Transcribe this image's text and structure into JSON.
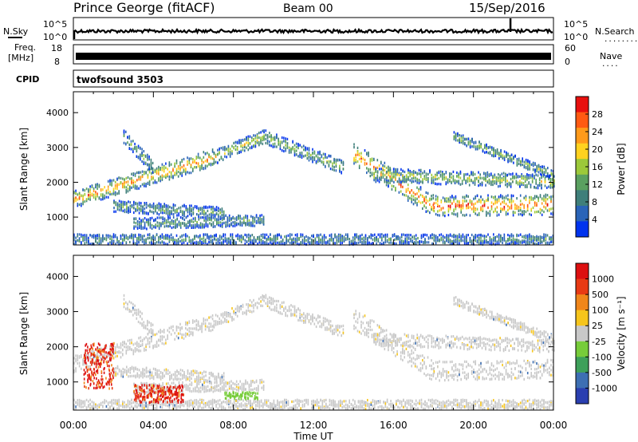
{
  "header": {
    "station": "Prince George (fitACF)",
    "beam": "Beam 00",
    "date": "15/Sep/2016"
  },
  "side_labels": {
    "nsky": "N.Sky",
    "freq_line1": "Freq.",
    "freq_line2": "[MHz]",
    "cpid": "CPID",
    "nsearch": "N.Search",
    "nsearch_dots": "........",
    "nave": "Nave",
    "nave_dots": "...."
  },
  "noise_axis": {
    "top": "10^5",
    "bottom": "10^0"
  },
  "freq_axis": {
    "top": "18",
    "bottom": "8"
  },
  "nave_axis": {
    "top": "60",
    "bottom": "0"
  },
  "cpid_text": "twofsound 3503",
  "chart_data": [
    {
      "type": "heatmap",
      "name_label": "Power [dB]",
      "ylabel": "Slant Range [km]",
      "ylim": [
        200,
        4600
      ],
      "y_ticks": [
        1000,
        2000,
        3000,
        4000
      ],
      "x_ticks": [
        "00:00",
        "04:00",
        "08:00",
        "12:00",
        "16:00",
        "20:00",
        "00:00"
      ],
      "xlim_hours": [
        0,
        24
      ],
      "colorbar": {
        "range": [
          0,
          32
        ],
        "ticks": [
          4,
          8,
          12,
          16,
          20,
          24,
          28
        ],
        "colors": [
          "#0033ee",
          "#2a64b8",
          "#3f7f7a",
          "#5aa060",
          "#9cc93a",
          "#ffd21f",
          "#ff9a1a",
          "#ff5a12",
          "#e8100e"
        ]
      },
      "echo_bands": [
        {
          "t0": 0.0,
          "t1": 7.0,
          "r_start": 1500,
          "r_end": 2700,
          "width": 380,
          "intensity": 0.8
        },
        {
          "t0": 7.0,
          "t1": 9.5,
          "r_start": 2700,
          "r_end": 3300,
          "width": 300,
          "intensity": 0.55
        },
        {
          "t0": 9.5,
          "t1": 13.5,
          "r_start": 3300,
          "r_end": 2400,
          "width": 300,
          "intensity": 0.45
        },
        {
          "t0": 14.0,
          "t1": 18.0,
          "r_start": 2800,
          "r_end": 1300,
          "width": 500,
          "intensity": 0.85
        },
        {
          "t0": 18.0,
          "t1": 24.0,
          "r_start": 1300,
          "r_end": 1350,
          "width": 450,
          "intensity": 0.95
        },
        {
          "t0": 15.0,
          "t1": 24.0,
          "r_start": 2200,
          "r_end": 2000,
          "width": 300,
          "intensity": 0.55
        },
        {
          "t0": 19.0,
          "t1": 24.0,
          "r_start": 3300,
          "r_end": 2200,
          "width": 200,
          "intensity": 0.45
        },
        {
          "t0": 2.0,
          "t1": 7.5,
          "r_start": 1300,
          "r_end": 1100,
          "width": 250,
          "intensity": 0.35
        },
        {
          "t0": 3.0,
          "t1": 9.5,
          "r_start": 800,
          "r_end": 900,
          "width": 250,
          "intensity": 0.35
        },
        {
          "t0": 2.5,
          "t1": 4.0,
          "r_start": 3300,
          "r_end": 2400,
          "width": 300,
          "intensity": 0.4
        },
        {
          "t0": 0.0,
          "t1": 24.0,
          "r_start": 350,
          "r_end": 350,
          "width": 220,
          "intensity": 0.3
        }
      ]
    },
    {
      "type": "heatmap",
      "name_label": "Velocity [m s⁻¹]",
      "ylabel": "Slant Range [km]",
      "ylim": [
        200,
        4600
      ],
      "y_ticks": [
        1000,
        2000,
        3000,
        4000
      ],
      "x_ticks": [
        "00:00",
        "04:00",
        "08:00",
        "12:00",
        "16:00",
        "20:00",
        "00:00"
      ],
      "xlabel": "Time UT",
      "xlim_hours": [
        0,
        24
      ],
      "colorbar": {
        "tick_labels": [
          "1000",
          "500",
          "100",
          "25",
          "-25",
          "-100",
          "-500",
          "-1000"
        ],
        "colors": [
          "#2a3fb0",
          "#3d6fb3",
          "#3ea05a",
          "#77cc3a",
          "#c8c8c8",
          "#f6c51c",
          "#f0861a",
          "#e83a14",
          "#dd0f10"
        ]
      },
      "red_regions": [
        {
          "t0": 0.5,
          "t1": 2.0,
          "r0": 800,
          "r1": 2100
        },
        {
          "t0": 3.0,
          "t1": 5.5,
          "r0": 400,
          "r1": 900
        }
      ],
      "green_regions": [
        {
          "t0": 7.5,
          "t1": 9.2,
          "r0": 500,
          "r1": 700
        }
      ]
    }
  ]
}
